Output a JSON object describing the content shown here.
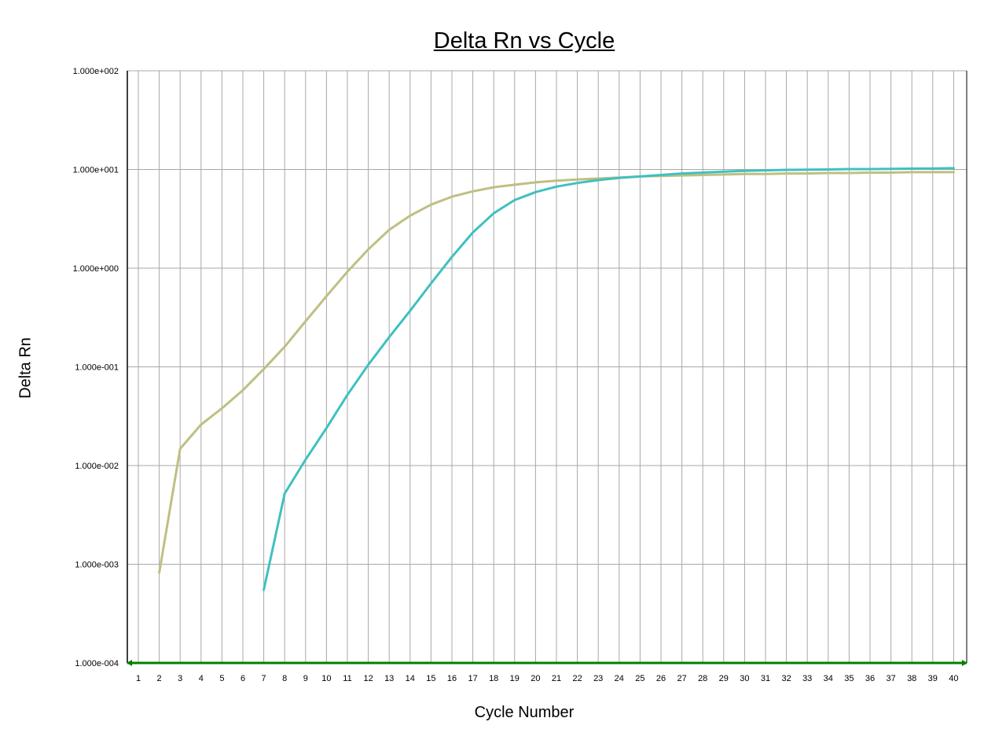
{
  "chart_data": {
    "type": "line",
    "title": "Delta Rn vs Cycle",
    "xlabel": "Cycle Number",
    "ylabel": "Delta Rn",
    "y_scale": "log",
    "ylim": [
      0.0001,
      100
    ],
    "xlim": [
      1,
      40
    ],
    "x_ticks": [
      1,
      2,
      3,
      4,
      5,
      6,
      7,
      8,
      9,
      10,
      11,
      12,
      13,
      14,
      15,
      16,
      17,
      18,
      19,
      20,
      21,
      22,
      23,
      24,
      25,
      26,
      27,
      28,
      29,
      30,
      31,
      32,
      33,
      34,
      35,
      36,
      37,
      38,
      39,
      40
    ],
    "y_ticks": [
      0.0001,
      0.001,
      0.01,
      0.1,
      1,
      10,
      100
    ],
    "y_tick_labels": [
      "1.000e-004",
      "1.000e-003",
      "1.000e-002",
      "1.000e-001",
      "1.000e+000",
      "1.000e+001",
      "1.000e+002"
    ],
    "grid": true,
    "series": [
      {
        "color": "#c0bf82",
        "x": [
          2,
          3,
          4,
          5,
          6,
          7,
          8,
          9,
          10,
          11,
          12,
          13,
          14,
          15,
          16,
          17,
          18,
          19,
          20,
          21,
          22,
          23,
          24,
          25,
          26,
          27,
          28,
          29,
          30,
          31,
          32,
          33,
          34,
          35,
          36,
          37,
          38,
          39,
          40
        ],
        "y": [
          0.00082,
          0.0148,
          0.026,
          0.038,
          0.058,
          0.095,
          0.16,
          0.29,
          0.52,
          0.92,
          1.55,
          2.45,
          3.4,
          4.4,
          5.3,
          6.0,
          6.6,
          7.0,
          7.4,
          7.7,
          7.9,
          8.1,
          8.3,
          8.5,
          8.6,
          8.7,
          8.8,
          8.9,
          9.0,
          9.0,
          9.1,
          9.1,
          9.2,
          9.2,
          9.3,
          9.3,
          9.4,
          9.4,
          9.4
        ]
      },
      {
        "color": "#40c0c0",
        "x": [
          7,
          8,
          9,
          10,
          11,
          12,
          13,
          14,
          15,
          16,
          17,
          18,
          19,
          20,
          21,
          22,
          23,
          24,
          25,
          26,
          27,
          28,
          29,
          30,
          31,
          32,
          33,
          34,
          35,
          36,
          37,
          38,
          39,
          40
        ],
        "y": [
          0.00055,
          0.0052,
          0.0115,
          0.024,
          0.052,
          0.105,
          0.2,
          0.37,
          0.7,
          1.3,
          2.3,
          3.6,
          4.9,
          5.9,
          6.7,
          7.3,
          7.8,
          8.2,
          8.5,
          8.8,
          9.1,
          9.3,
          9.5,
          9.7,
          9.8,
          9.9,
          9.95,
          10.0,
          10.1,
          10.1,
          10.15,
          10.2,
          10.25,
          10.3
        ]
      },
      {
        "color": "#008000",
        "x": [
          1,
          40
        ],
        "y": [
          0.0001,
          0.0001
        ]
      }
    ]
  }
}
